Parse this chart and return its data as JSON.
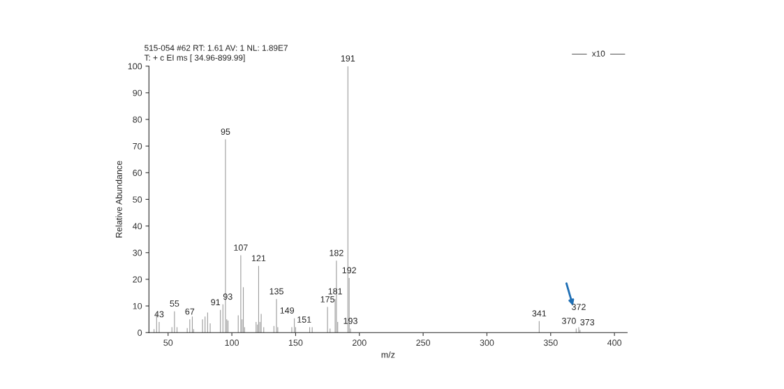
{
  "chart_data": {
    "type": "bar",
    "title": "515-054 #62 RT: 1.61 AV: 1 NL: 1.89E7",
    "subtitle": "T: + c EI ms [ 34.96-899.99]",
    "xlabel": "m/z",
    "ylabel": "Relative Abundance",
    "x": [
      39,
      41,
      43,
      53,
      55,
      57,
      65,
      67,
      69,
      70,
      77,
      79,
      81,
      83,
      91,
      93,
      95,
      96,
      97,
      105,
      107,
      108,
      109,
      110,
      119,
      120,
      121,
      122,
      123,
      125,
      133,
      135,
      136,
      147,
      149,
      150,
      161,
      163,
      175,
      177,
      181,
      182,
      183,
      191,
      192,
      193,
      341,
      370,
      372,
      373
    ],
    "values": [
      1.3,
      7,
      4,
      2,
      8,
      2,
      1.7,
      5,
      6,
      1.3,
      5,
      6,
      7.5,
      3.5,
      8.5,
      10.6,
      72.5,
      5,
      4.5,
      6.5,
      29,
      5,
      17,
      2,
      4,
      3,
      25,
      4,
      7,
      2,
      2.5,
      12.6,
      2,
      2,
      5.4,
      2,
      2,
      2,
      9.6,
      1.5,
      12.6,
      27,
      4,
      100,
      20.5,
      1.5,
      4.3,
      1.5,
      2,
      1
    ],
    "color": "#9a9a9a",
    "xlim": [
      35,
      410
    ],
    "xticks": [
      50,
      100,
      150,
      200,
      250,
      300,
      350,
      400
    ],
    "ylim": [
      0,
      100
    ],
    "yticks": [
      0,
      10,
      20,
      30,
      40,
      50,
      60,
      70,
      80,
      90,
      100
    ],
    "grid": false,
    "annotations": [
      {
        "text": "43",
        "x": 43,
        "y": 4
      },
      {
        "text": "55",
        "x": 55,
        "y": 8
      },
      {
        "text": "67",
        "x": 67,
        "y": 5
      },
      {
        "text": "91",
        "x": 91,
        "y": 8.5
      },
      {
        "text": "93",
        "x": 93,
        "y": 10.6
      },
      {
        "text": "95",
        "x": 95,
        "y": 72.5
      },
      {
        "text": "107",
        "x": 107,
        "y": 29
      },
      {
        "text": "121",
        "x": 121,
        "y": 25
      },
      {
        "text": "135",
        "x": 135,
        "y": 12.6
      },
      {
        "text": "149",
        "x": 149,
        "y": 5.4
      },
      {
        "text": "151",
        "x": 151,
        "y": 2
      },
      {
        "text": "175",
        "x": 175,
        "y": 9.6
      },
      {
        "text": "181",
        "x": 181,
        "y": 12.6
      },
      {
        "text": "182",
        "x": 182,
        "y": 27
      },
      {
        "text": "191",
        "x": 191,
        "y": 100
      },
      {
        "text": "192",
        "x": 192,
        "y": 20.5
      },
      {
        "text": "193",
        "x": 193,
        "y": 1.5
      },
      {
        "text": "341",
        "x": 341,
        "y": 4.3
      },
      {
        "text": "370",
        "x": 370,
        "y": 1.5
      },
      {
        "text": "372",
        "x": 372,
        "y": 2
      },
      {
        "text": "373",
        "x": 373,
        "y": 1
      },
      "x10"
    ]
  }
}
